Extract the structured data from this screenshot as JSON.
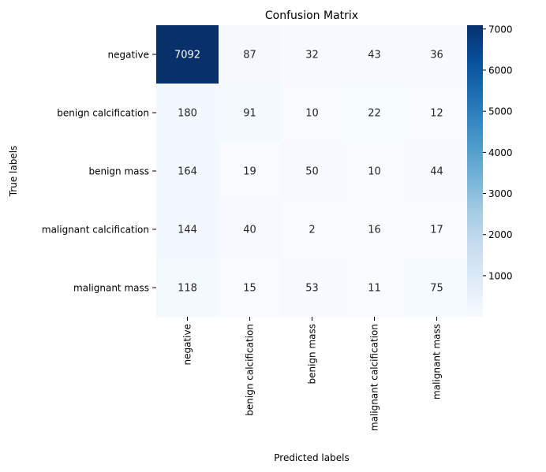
{
  "chart_data": {
    "type": "heatmap",
    "title": "Confusion Matrix",
    "xlabel": "Predicted labels",
    "ylabel": "True labels",
    "x_categories": [
      "negative",
      "benign calcification",
      "benign mass",
      "malignant calcification",
      "malignant mass"
    ],
    "y_categories": [
      "negative",
      "benign calcification",
      "benign mass",
      "malignant calcification",
      "malignant mass"
    ],
    "values": [
      [
        7092,
        87,
        32,
        43,
        36
      ],
      [
        180,
        91,
        10,
        22,
        12
      ],
      [
        164,
        19,
        50,
        10,
        44
      ],
      [
        144,
        40,
        2,
        16,
        17
      ],
      [
        118,
        15,
        53,
        11,
        75
      ]
    ],
    "colormap": "Blues",
    "color_range": [
      2,
      7092
    ],
    "colorbar_ticks": [
      1000,
      2000,
      3000,
      4000,
      5000,
      6000,
      7000
    ],
    "colorbar_tick_labels": [
      "1000",
      "2000",
      "3000",
      "4000",
      "5000",
      "6000",
      "7000"
    ],
    "grid": false,
    "legend": "colorbar-right"
  }
}
